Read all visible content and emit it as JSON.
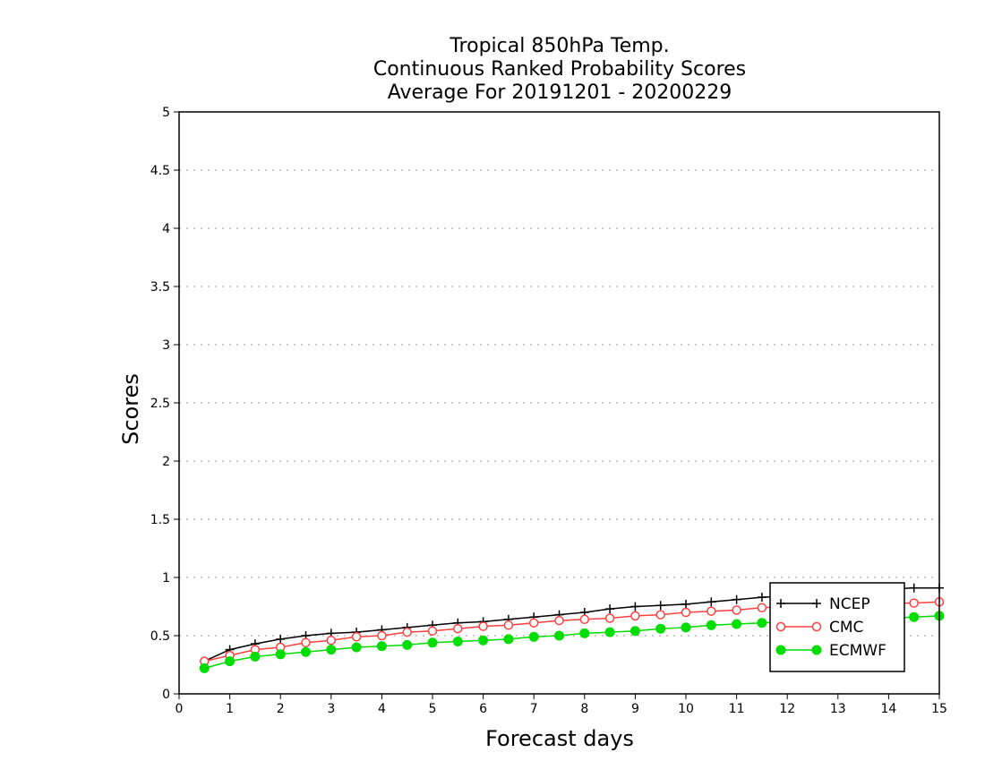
{
  "chart_data": {
    "type": "line",
    "title": [
      "Tropical 850hPa Temp.",
      "Continuous Ranked Probability Scores",
      "Average For 20191201 - 20200229"
    ],
    "xlabel": "Forecast days",
    "ylabel": "Scores",
    "xlim": [
      0,
      15
    ],
    "ylim": [
      0,
      5
    ],
    "x_ticks": [
      "0",
      "1",
      "2",
      "3",
      "4",
      "5",
      "6",
      "7",
      "8",
      "9",
      "10",
      "11",
      "12",
      "13",
      "14",
      "15"
    ],
    "y_ticks": [
      "0",
      "0.5",
      "1",
      "1.5",
      "2",
      "2.5",
      "3",
      "3.5",
      "4",
      "4.5",
      "5"
    ],
    "grid": "horizontal dotted",
    "legend_position": "bottom-right",
    "x": [
      0.5,
      1,
      1.5,
      2,
      2.5,
      3,
      3.5,
      4,
      4.5,
      5,
      5.5,
      6,
      6.5,
      7,
      7.5,
      8,
      8.5,
      9,
      9.5,
      10,
      10.5,
      11,
      11.5,
      12,
      12.5,
      13,
      13.5,
      14,
      14.5,
      15
    ],
    "series": [
      {
        "name": "NCEP",
        "color": "#000000",
        "marker": "plus",
        "values": [
          0.28,
          0.38,
          0.43,
          0.47,
          0.5,
          0.52,
          0.53,
          0.55,
          0.57,
          0.59,
          0.61,
          0.62,
          0.64,
          0.66,
          0.68,
          0.7,
          0.73,
          0.75,
          0.76,
          0.77,
          0.79,
          0.81,
          0.83,
          0.84,
          0.85,
          0.86,
          0.88,
          0.9,
          0.91,
          0.91
        ]
      },
      {
        "name": "CMC",
        "color": "#ff4040",
        "marker": "open-circle",
        "values": [
          0.28,
          0.33,
          0.38,
          0.4,
          0.44,
          0.46,
          0.49,
          0.5,
          0.53,
          0.54,
          0.56,
          0.58,
          0.59,
          0.61,
          0.63,
          0.64,
          0.65,
          0.67,
          0.68,
          0.7,
          0.71,
          0.72,
          0.74,
          0.75,
          0.76,
          0.77,
          0.77,
          0.78,
          0.78,
          0.79
        ]
      },
      {
        "name": "ECMWF",
        "color": "#00dd00",
        "marker": "filled-circle",
        "values": [
          0.22,
          0.28,
          0.32,
          0.34,
          0.36,
          0.38,
          0.4,
          0.41,
          0.42,
          0.44,
          0.45,
          0.46,
          0.47,
          0.49,
          0.5,
          0.52,
          0.53,
          0.54,
          0.56,
          0.57,
          0.59,
          0.6,
          0.61,
          0.62,
          0.63,
          0.64,
          0.64,
          0.65,
          0.66,
          0.67
        ]
      }
    ]
  }
}
